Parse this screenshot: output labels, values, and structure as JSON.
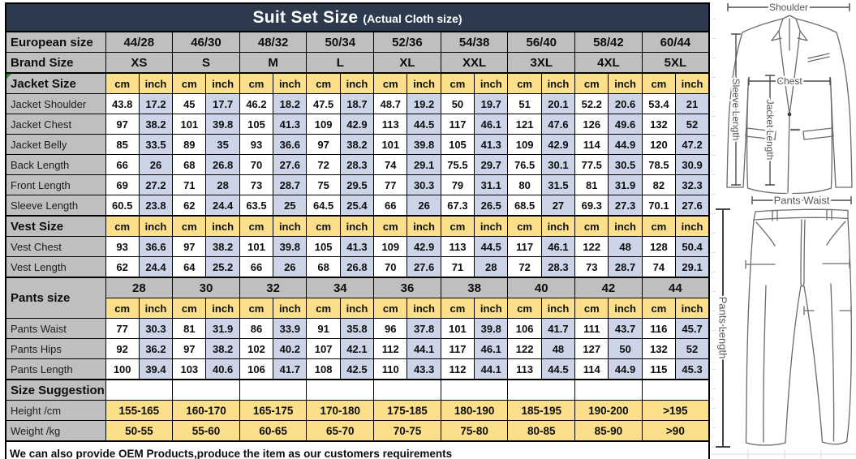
{
  "title": {
    "main": "Suit Set Size",
    "sub": "(Actual Cloth size)"
  },
  "columns": {
    "european_label": "European size",
    "european": [
      "44/28",
      "46/30",
      "48/32",
      "50/34",
      "52/36",
      "54/38",
      "56/40",
      "58/42",
      "60/44"
    ],
    "brand_label": "Brand Size",
    "brand": [
      "XS",
      "S",
      "M",
      "L",
      "XL",
      "XXL",
      "3XL",
      "4XL",
      "5XL"
    ]
  },
  "units": {
    "cm": "cm",
    "inch": "inch"
  },
  "sections": [
    {
      "label": "Jacket Size",
      "rows": [
        {
          "label": "Jacket Shoulder",
          "cm": [
            "43.8",
            "45",
            "46.2",
            "47.5",
            "48.7",
            "50",
            "51",
            "52.2",
            "53.4"
          ],
          "inch": [
            "17.2",
            "17.7",
            "18.2",
            "18.7",
            "19.2",
            "19.7",
            "20.1",
            "20.6",
            "21"
          ]
        },
        {
          "label": "Jacket Chest",
          "cm": [
            "97",
            "101",
            "105",
            "109",
            "113",
            "117",
            "121",
            "126",
            "132"
          ],
          "inch": [
            "38.2",
            "39.8",
            "41.3",
            "42.9",
            "44.5",
            "46.1",
            "47.6",
            "49.6",
            "52"
          ]
        },
        {
          "label": "Jacket Belly",
          "cm": [
            "85",
            "89",
            "93",
            "97",
            "101",
            "105",
            "109",
            "114",
            "120"
          ],
          "inch": [
            "33.5",
            "35",
            "36.6",
            "38.2",
            "39.8",
            "41.3",
            "42.9",
            "44.9",
            "47.2"
          ]
        },
        {
          "label": "Back Length",
          "cm": [
            "66",
            "68",
            "70",
            "72",
            "74",
            "75.5",
            "76.5",
            "77.5",
            "78.5"
          ],
          "inch": [
            "26",
            "26.8",
            "27.6",
            "28.3",
            "29.1",
            "29.7",
            "30.1",
            "30.5",
            "30.9"
          ]
        },
        {
          "label": "Front Length",
          "cm": [
            "69",
            "71",
            "73",
            "75",
            "77",
            "79",
            "80",
            "81",
            "82"
          ],
          "inch": [
            "27.2",
            "28",
            "28.7",
            "29.5",
            "30.3",
            "31.1",
            "31.5",
            "31.9",
            "32.3"
          ]
        },
        {
          "label": "Sleeve Length",
          "cm": [
            "60.5",
            "62",
            "63.5",
            "64.5",
            "66",
            "67.3",
            "68.5",
            "69.3",
            "70.1"
          ],
          "inch": [
            "23.8",
            "24.4",
            "25",
            "25.4",
            "26",
            "26.5",
            "27",
            "27.3",
            "27.6"
          ]
        }
      ]
    },
    {
      "label": "Vest Size",
      "rows": [
        {
          "label": "Vest Chest",
          "cm": [
            "93",
            "97",
            "101",
            "105",
            "109",
            "113",
            "117",
            "122",
            "128"
          ],
          "inch": [
            "36.6",
            "38.2",
            "39.8",
            "41.3",
            "42.9",
            "44.5",
            "46.1",
            "48",
            "50.4"
          ]
        },
        {
          "label": "Vest Length",
          "cm": [
            "62",
            "64",
            "66",
            "68",
            "70",
            "71",
            "72",
            "73",
            "74"
          ],
          "inch": [
            "24.4",
            "25.2",
            "26",
            "26.8",
            "27.6",
            "28",
            "28.3",
            "28.7",
            "29.1"
          ]
        }
      ]
    },
    {
      "label": "Pants size",
      "sizes": [
        "28",
        "30",
        "32",
        "34",
        "36",
        "38",
        "40",
        "42",
        "44"
      ],
      "rows": [
        {
          "label": "Pants Waist",
          "cm": [
            "77",
            "81",
            "86",
            "91",
            "96",
            "101",
            "106",
            "111",
            "116"
          ],
          "inch": [
            "30.3",
            "31.9",
            "33.9",
            "35.8",
            "37.8",
            "39.8",
            "41.7",
            "43.7",
            "45.7"
          ]
        },
        {
          "label": "Pants Hips",
          "cm": [
            "92",
            "97",
            "102",
            "107",
            "112",
            "117",
            "122",
            "127",
            "132"
          ],
          "inch": [
            "36.2",
            "38.2",
            "40.2",
            "42.1",
            "44.1",
            "46.1",
            "48",
            "50",
            "52"
          ]
        },
        {
          "label": "Pants Length",
          "cm": [
            "100",
            "103",
            "106",
            "108",
            "110",
            "112",
            "113",
            "114",
            "115"
          ],
          "inch": [
            "39.4",
            "40.6",
            "41.7",
            "42.5",
            "43.3",
            "44.1",
            "44.5",
            "44.9",
            "45.3"
          ]
        }
      ]
    }
  ],
  "suggestion": {
    "label": "Size Suggestion",
    "rows": [
      {
        "label": "Height /cm",
        "values": [
          "155-165",
          "160-170",
          "165-175",
          "170-180",
          "175-185",
          "180-190",
          "185-195",
          "190-200",
          ">195"
        ]
      },
      {
        "label": "Weight /kg",
        "values": [
          "50-55",
          "55-60",
          "60-65",
          "65-70",
          "70-75",
          "75-80",
          "80-85",
          "85-90",
          ">90"
        ]
      }
    ]
  },
  "footer": "We can also provide OEM Products,produce the item as our customers requirements",
  "diagram": {
    "shoulder": "Shoulder",
    "chest": "Chest",
    "jacket_length": "Jacket Length",
    "sleeve_length": "Sleeve Length",
    "pants_waist": "Pants Waist",
    "pants_length": "Pants Length"
  },
  "colors": {
    "header_bg": "#2d3a4e",
    "label_bg": "#bfbfbf",
    "unit_bg": "#fbdf8b",
    "inch_bg": "#ccd5e8",
    "range_bg": "#fbdf8b",
    "border": "#000000"
  }
}
